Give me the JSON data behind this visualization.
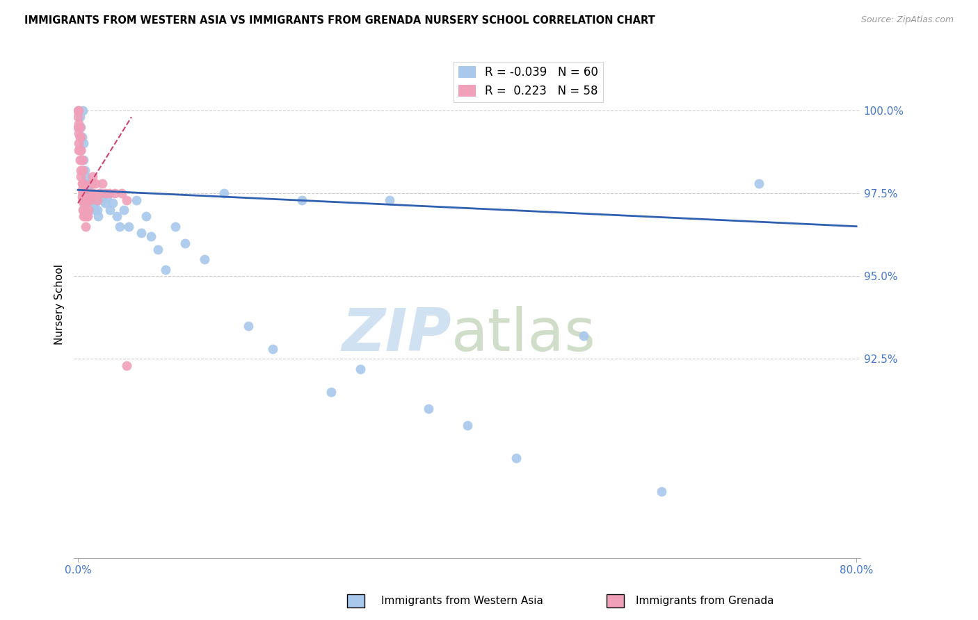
{
  "title": "IMMIGRANTS FROM WESTERN ASIA VS IMMIGRANTS FROM GRENADA NURSERY SCHOOL CORRELATION CHART",
  "source": "Source: ZipAtlas.com",
  "ylabel": "Nursery School",
  "legend_blue_r": "-0.039",
  "legend_blue_n": "60",
  "legend_pink_r": "0.223",
  "legend_pink_n": "58",
  "blue_color": "#A8C8EC",
  "pink_color": "#F0A0B8",
  "trendline_blue_color": "#3060B0",
  "trendline_pink_color": "#D04070",
  "ytick_vals": [
    92.5,
    95.0,
    97.5,
    100.0
  ],
  "xlim": [
    -0.004,
    0.804
  ],
  "ylim": [
    86.5,
    101.8
  ],
  "blue_x": [
    0.001,
    0.002,
    0.003,
    0.004,
    0.005,
    0.006,
    0.006,
    0.007,
    0.007,
    0.008,
    0.008,
    0.009,
    0.009,
    0.01,
    0.01,
    0.011,
    0.011,
    0.012,
    0.013,
    0.013,
    0.014,
    0.015,
    0.015,
    0.016,
    0.017,
    0.018,
    0.02,
    0.021,
    0.023,
    0.025,
    0.028,
    0.03,
    0.033,
    0.036,
    0.04,
    0.043,
    0.047,
    0.052,
    0.06,
    0.065,
    0.07,
    0.075,
    0.082,
    0.09,
    0.1,
    0.11,
    0.13,
    0.15,
    0.175,
    0.2,
    0.23,
    0.26,
    0.29,
    0.32,
    0.36,
    0.4,
    0.45,
    0.52,
    0.6,
    0.7
  ],
  "blue_y": [
    100.0,
    99.8,
    99.5,
    99.2,
    100.0,
    99.0,
    98.5,
    98.2,
    97.8,
    97.6,
    98.0,
    97.5,
    97.8,
    97.5,
    97.3,
    97.5,
    97.6,
    97.4,
    97.5,
    97.3,
    97.4,
    97.2,
    97.5,
    97.3,
    97.0,
    97.2,
    97.0,
    96.8,
    97.5,
    97.3,
    97.2,
    97.4,
    97.0,
    97.2,
    96.8,
    96.5,
    97.0,
    96.5,
    97.3,
    96.3,
    96.8,
    96.2,
    95.8,
    95.2,
    96.5,
    96.0,
    95.5,
    97.5,
    93.5,
    92.8,
    97.3,
    91.5,
    92.2,
    97.3,
    91.0,
    90.5,
    89.5,
    93.2,
    88.5,
    97.8
  ],
  "pink_x": [
    0.0,
    0.0,
    0.0,
    0.001,
    0.001,
    0.001,
    0.001,
    0.002,
    0.002,
    0.002,
    0.003,
    0.003,
    0.003,
    0.004,
    0.004,
    0.004,
    0.005,
    0.005,
    0.005,
    0.006,
    0.006,
    0.006,
    0.007,
    0.007,
    0.008,
    0.008,
    0.009,
    0.01,
    0.01,
    0.011,
    0.012,
    0.013,
    0.014,
    0.015,
    0.016,
    0.018,
    0.02,
    0.022,
    0.025,
    0.028,
    0.032,
    0.038,
    0.045,
    0.05,
    0.001,
    0.002,
    0.003,
    0.004,
    0.005,
    0.006,
    0.001,
    0.002,
    0.003,
    0.003,
    0.004,
    0.005,
    0.005,
    0.05
  ],
  "pink_y": [
    100.0,
    99.8,
    99.5,
    99.5,
    99.3,
    99.0,
    98.8,
    99.2,
    98.8,
    98.5,
    98.5,
    98.2,
    98.0,
    97.8,
    97.6,
    97.4,
    97.5,
    97.3,
    97.0,
    97.2,
    97.0,
    96.8,
    97.0,
    96.8,
    97.2,
    96.5,
    96.8,
    97.3,
    96.8,
    97.0,
    97.3,
    97.5,
    97.8,
    98.0,
    97.5,
    97.8,
    97.3,
    97.5,
    97.8,
    97.5,
    97.5,
    97.5,
    97.5,
    97.3,
    99.6,
    99.2,
    98.8,
    98.5,
    98.2,
    97.8,
    100.0,
    99.5,
    99.2,
    98.8,
    98.5,
    97.8,
    97.5,
    92.3
  ],
  "blue_trendline_x": [
    0.0,
    0.8
  ],
  "blue_trendline_y": [
    97.6,
    96.5
  ],
  "pink_trendline_x": [
    0.0,
    0.055
  ],
  "pink_trendline_y": [
    97.2,
    99.8
  ]
}
